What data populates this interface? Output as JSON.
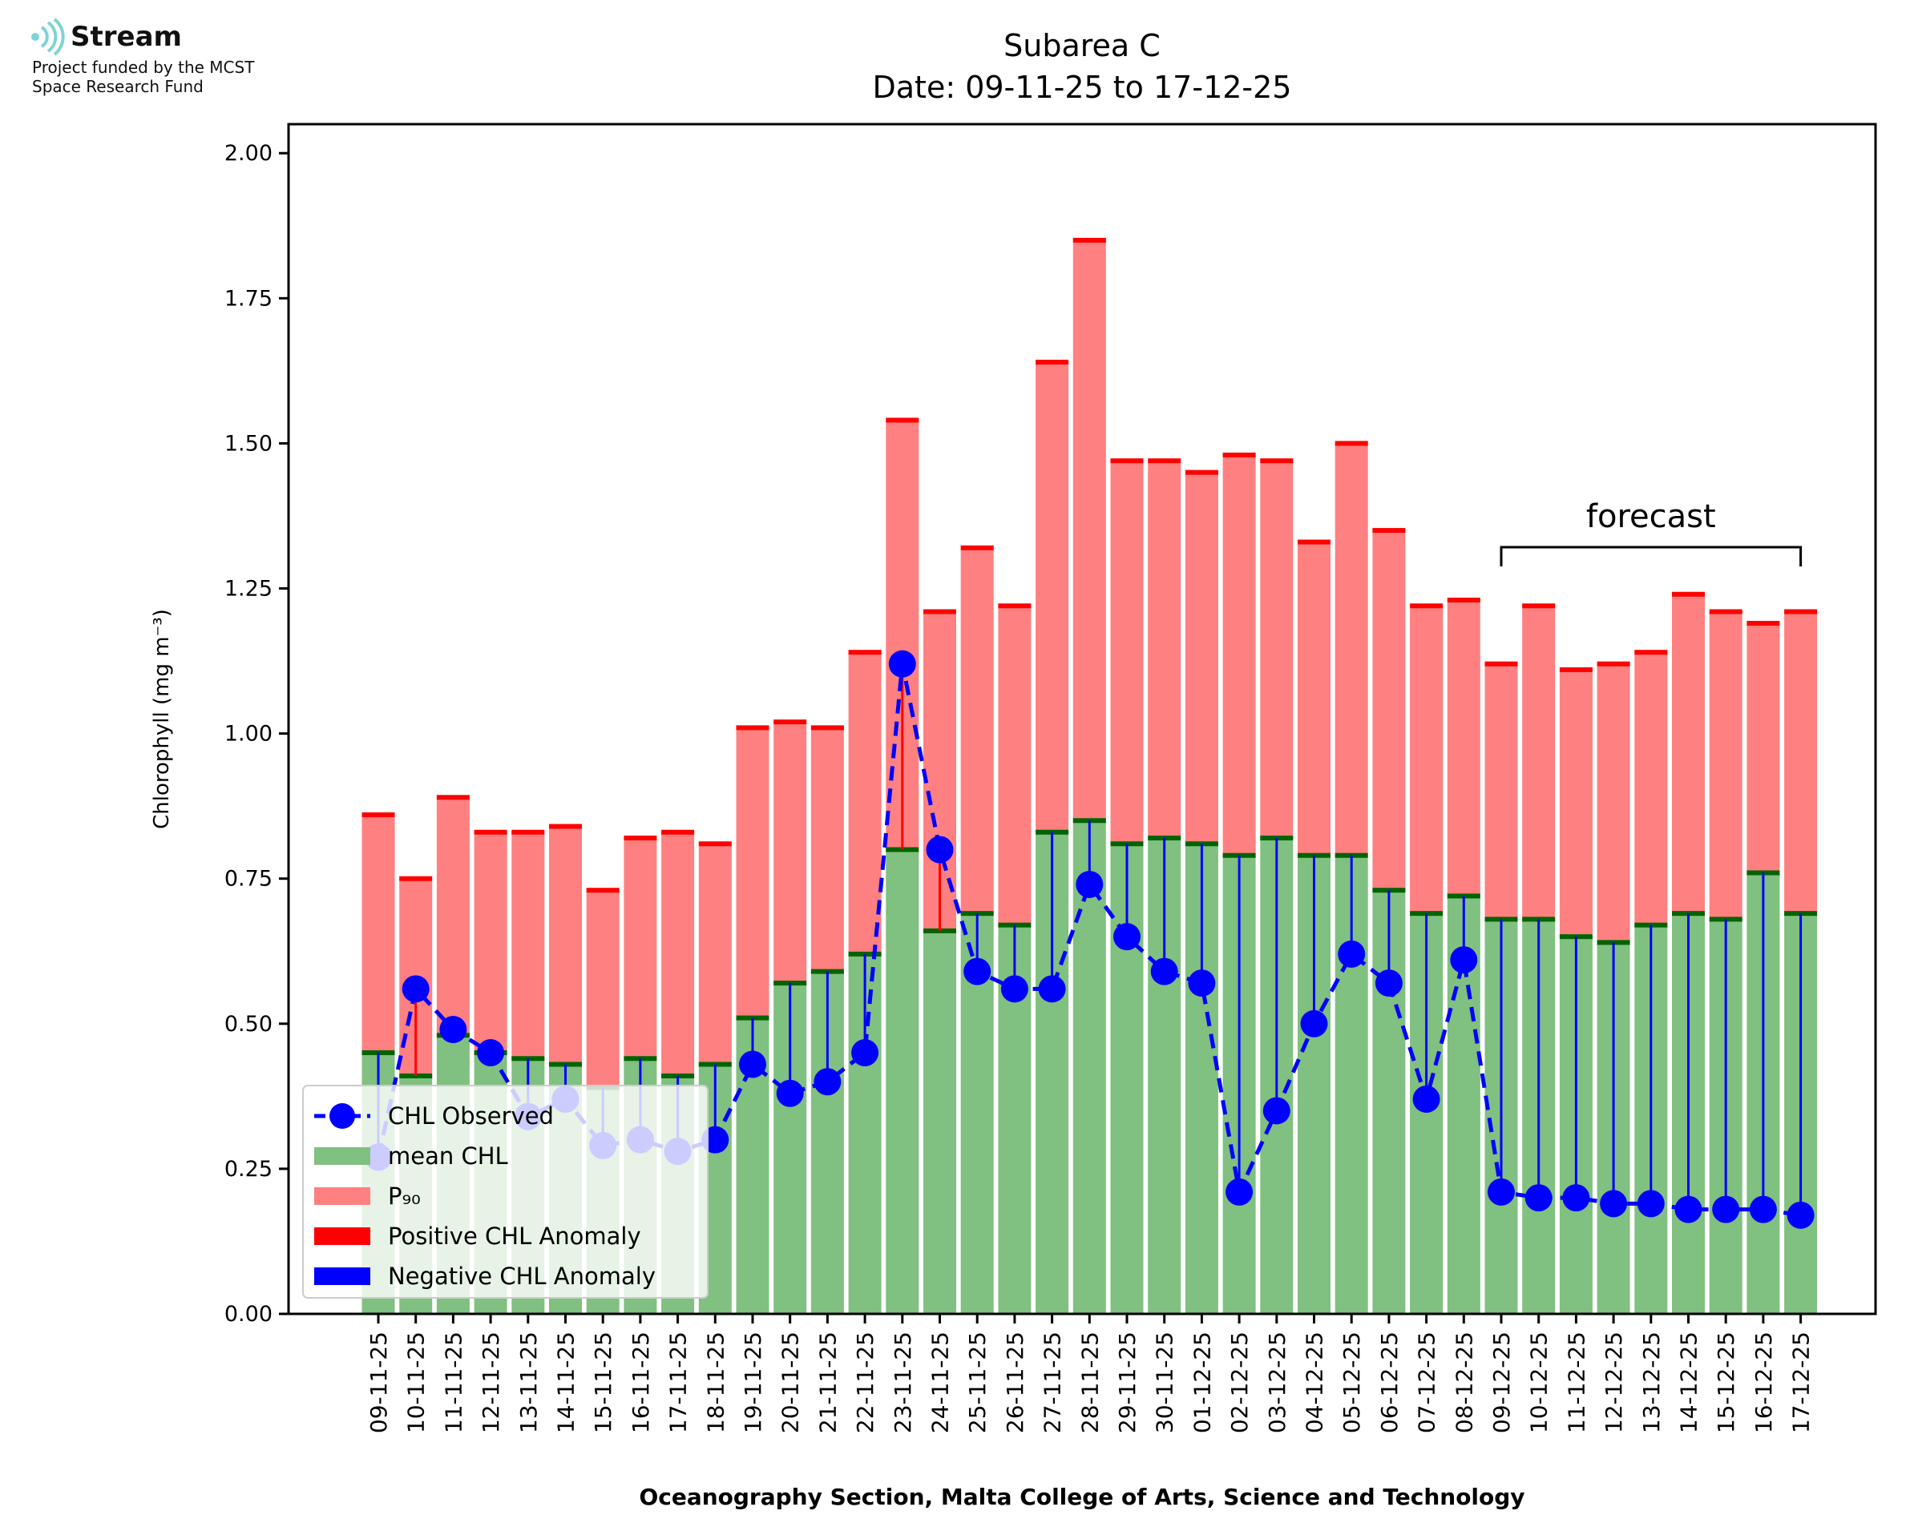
{
  "logo": {
    "brand": "Stream",
    "line1": "Project funded by the MCST",
    "line2": "Space Research Fund"
  },
  "chart_data": {
    "type": "bar",
    "title": "Subarea C",
    "subtitle": "Date: 09-11-25 to 17-12-25",
    "xlabel": "Oceanography Section, Malta College of Arts, Science and Technology",
    "ylabel": "Chlorophyll (mg m⁻³)",
    "ylim": [
      0,
      2.05
    ],
    "yticks": [
      "0.00",
      "0.25",
      "0.50",
      "0.75",
      "1.00",
      "1.25",
      "1.50",
      "1.75",
      "2.00"
    ],
    "grid": false,
    "legend_position": "lower-left",
    "annotation": "forecast",
    "forecast_range": [
      "09-12-25",
      "17-12-25"
    ],
    "categories": [
      "09-11-25",
      "10-11-25",
      "11-11-25",
      "12-11-25",
      "13-11-25",
      "14-11-25",
      "15-11-25",
      "16-11-25",
      "17-11-25",
      "18-11-25",
      "19-11-25",
      "20-11-25",
      "21-11-25",
      "22-11-25",
      "23-11-25",
      "24-11-25",
      "25-11-25",
      "26-11-25",
      "27-11-25",
      "28-11-25",
      "29-11-25",
      "30-11-25",
      "01-12-25",
      "02-12-25",
      "03-12-25",
      "04-12-25",
      "05-12-25",
      "06-12-25",
      "07-12-25",
      "08-12-25",
      "09-12-25",
      "10-12-25",
      "11-12-25",
      "12-12-25",
      "13-12-25",
      "14-12-25",
      "15-12-25",
      "16-12-25",
      "17-12-25"
    ],
    "series": [
      {
        "name": "CHL Observed",
        "color": "#0000ff",
        "values": [
          0.27,
          0.56,
          0.49,
          0.45,
          0.34,
          0.37,
          0.29,
          0.3,
          0.28,
          0.3,
          0.43,
          0.38,
          0.4,
          0.45,
          1.12,
          0.8,
          0.59,
          0.56,
          0.56,
          0.74,
          0.65,
          0.59,
          0.57,
          0.21,
          0.35,
          0.5,
          0.62,
          0.57,
          0.37,
          0.61,
          0.21,
          0.2,
          0.2,
          0.19,
          0.19,
          0.18,
          0.18,
          0.18,
          0.17
        ]
      },
      {
        "name": "mean CHL",
        "color": "#80c080",
        "values": [
          0.45,
          0.41,
          0.48,
          0.45,
          0.44,
          0.43,
          0.39,
          0.44,
          0.41,
          0.43,
          0.51,
          0.57,
          0.59,
          0.62,
          0.8,
          0.66,
          0.69,
          0.67,
          0.83,
          0.85,
          0.81,
          0.82,
          0.81,
          0.79,
          0.82,
          0.79,
          0.79,
          0.73,
          0.69,
          0.72,
          0.68,
          0.68,
          0.65,
          0.64,
          0.67,
          0.69,
          0.68,
          0.76,
          0.69
        ]
      },
      {
        "name": "P₉₀",
        "color": "#ff8080",
        "values": [
          0.86,
          0.75,
          0.89,
          0.83,
          0.83,
          0.84,
          0.73,
          0.82,
          0.83,
          0.81,
          1.01,
          1.02,
          1.01,
          1.14,
          1.54,
          1.21,
          1.32,
          1.22,
          1.64,
          1.85,
          1.47,
          1.47,
          1.45,
          1.48,
          1.47,
          1.33,
          1.5,
          1.35,
          1.22,
          1.23,
          1.12,
          1.22,
          1.11,
          1.12,
          1.14,
          1.24,
          1.21,
          1.19,
          1.21
        ]
      }
    ],
    "legend": [
      "CHL Observed",
      "mean CHL",
      "P₉₀",
      "Positive CHL Anomaly",
      "Negative CHL Anomaly"
    ],
    "colors": {
      "observed": "#0000ff",
      "mean": "#80c080",
      "mean_cap": "#006400",
      "p90": "#ff8080",
      "p90_cap": "#ff0000",
      "positive_anomaly": "#ff0000",
      "negative_anomaly": "#0000ff"
    }
  }
}
